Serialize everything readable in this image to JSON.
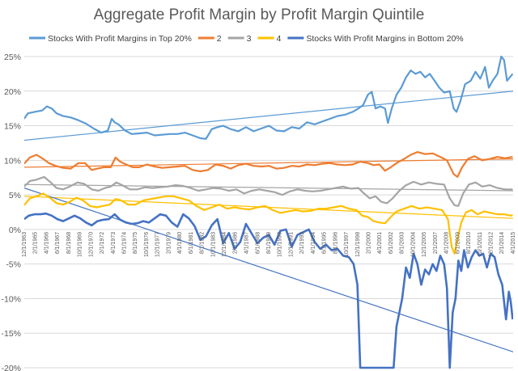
{
  "chart_data": {
    "type": "line",
    "title": "Aggregate Profit Margin by Profit Margin Quintile",
    "xlabel": "",
    "ylabel": "",
    "y_unit": "%",
    "ylim": [
      -20,
      25
    ],
    "yticks": [
      -20,
      -15,
      -10,
      -5,
      0,
      5,
      10,
      15,
      20,
      25
    ],
    "ytick_labels": [
      "-20%",
      "-15%",
      "-10%",
      "-5%",
      "0%",
      "5%",
      "10%",
      "15%",
      "20%",
      "25%"
    ],
    "x_range": [
      1963.92,
      2015.25
    ],
    "x_ticks": [
      {
        "x": 1963.92,
        "label": "12/1/1963"
      },
      {
        "x": 1965.08,
        "label": "2/1/1965"
      },
      {
        "x": 1966.25,
        "label": "4/1/1966"
      },
      {
        "x": 1967.42,
        "label": "6/1/1967"
      },
      {
        "x": 1968.58,
        "label": "8/1/1968"
      },
      {
        "x": 1969.75,
        "label": "10/1/1969"
      },
      {
        "x": 1970.92,
        "label": "12/1/1970"
      },
      {
        "x": 1972.08,
        "label": "2/1/1972"
      },
      {
        "x": 1973.25,
        "label": "4/1/1973"
      },
      {
        "x": 1974.42,
        "label": "6/1/1974"
      },
      {
        "x": 1975.58,
        "label": "8/1/1975"
      },
      {
        "x": 1976.75,
        "label": "10/1/1976"
      },
      {
        "x": 1977.92,
        "label": "12/1/1977"
      },
      {
        "x": 1979.08,
        "label": "2/1/1979"
      },
      {
        "x": 1980.25,
        "label": "4/1/1980"
      },
      {
        "x": 1981.42,
        "label": "6/1/1981"
      },
      {
        "x": 1982.58,
        "label": "8/1/1982"
      },
      {
        "x": 1983.75,
        "label": "10/1/1983"
      },
      {
        "x": 1984.92,
        "label": "12/1/1984"
      },
      {
        "x": 1986.08,
        "label": "2/1/1986"
      },
      {
        "x": 1987.25,
        "label": "4/1/1987"
      },
      {
        "x": 1988.42,
        "label": "6/1/1988"
      },
      {
        "x": 1989.58,
        "label": "8/1/1989"
      },
      {
        "x": 1990.75,
        "label": "10/1/1990"
      },
      {
        "x": 1991.92,
        "label": "12/1/1991"
      },
      {
        "x": 1993.08,
        "label": "2/1/1993"
      },
      {
        "x": 1994.25,
        "label": "4/1/1994"
      },
      {
        "x": 1995.42,
        "label": "6/1/1995"
      },
      {
        "x": 1996.58,
        "label": "8/1/1996"
      },
      {
        "x": 1997.75,
        "label": "10/1/1997"
      },
      {
        "x": 1998.92,
        "label": "12/1/1998"
      },
      {
        "x": 2000.08,
        "label": "2/1/2000"
      },
      {
        "x": 2001.25,
        "label": "4/1/2001"
      },
      {
        "x": 2002.42,
        "label": "6/1/2002"
      },
      {
        "x": 2003.58,
        "label": "8/1/2003"
      },
      {
        "x": 2004.75,
        "label": "10/1/2004"
      },
      {
        "x": 2005.92,
        "label": "12/1/2005"
      },
      {
        "x": 2007.08,
        "label": "2/1/2007"
      },
      {
        "x": 2008.25,
        "label": "4/1/2008"
      },
      {
        "x": 2009.42,
        "label": "6/1/2009"
      },
      {
        "x": 2010.58,
        "label": "8/1/2010"
      },
      {
        "x": 2011.75,
        "label": "10/1/2011"
      },
      {
        "x": 2012.92,
        "label": "12/1/2012"
      },
      {
        "x": 2014.08,
        "label": "2/1/2014"
      },
      {
        "x": 2015.25,
        "label": "4/1/2015"
      }
    ],
    "grid": "horizontal",
    "legend_position": "top",
    "series": [
      {
        "name": "Stocks With Profit Margins in Top 20%",
        "color": "#5b9bd5",
        "width": 2.2,
        "x": [
          1963.9,
          1964.3,
          1965.0,
          1965.8,
          1966.3,
          1966.8,
          1967.3,
          1968.0,
          1968.8,
          1969.6,
          1970.4,
          1971.2,
          1972.0,
          1972.7,
          1973.1,
          1973.4,
          1973.8,
          1974.5,
          1975.2,
          1976.0,
          1976.8,
          1977.6,
          1978.4,
          1979.2,
          1980.0,
          1980.8,
          1981.6,
          1982.4,
          1983.0,
          1983.6,
          1984.2,
          1984.8,
          1985.6,
          1986.4,
          1987.2,
          1988.0,
          1988.8,
          1989.6,
          1990.4,
          1991.2,
          1992.0,
          1992.8,
          1993.6,
          1994.4,
          1995.2,
          1996.0,
          1996.8,
          1997.6,
          1998.4,
          1999.0,
          1999.5,
          2000.0,
          2000.4,
          2000.8,
          2001.3,
          2001.8,
          2002.1,
          2002.5,
          2003.0,
          2003.5,
          2004.0,
          2004.5,
          2005.0,
          2005.5,
          2006.0,
          2006.5,
          2007.0,
          2007.5,
          2008.0,
          2008.6,
          2009.0,
          2009.3,
          2009.7,
          2010.2,
          2010.8,
          2011.3,
          2011.8,
          2012.3,
          2012.7,
          2013.1,
          2013.6,
          2014.0,
          2014.3,
          2014.6,
          2014.9,
          2015.2
        ],
        "y": [
          16.0,
          16.8,
          17.0,
          17.2,
          17.8,
          17.5,
          16.8,
          16.4,
          16.2,
          15.8,
          15.3,
          14.6,
          14.0,
          14.3,
          16.0,
          15.5,
          15.2,
          14.3,
          13.8,
          13.9,
          14.0,
          13.6,
          13.7,
          13.8,
          13.8,
          14.0,
          13.6,
          13.2,
          13.1,
          14.5,
          14.8,
          15.0,
          14.5,
          14.2,
          14.8,
          14.2,
          14.6,
          15.0,
          14.3,
          14.2,
          14.8,
          14.6,
          15.5,
          15.2,
          15.6,
          16.0,
          16.4,
          16.6,
          17.0,
          17.5,
          18.0,
          19.5,
          19.9,
          17.5,
          17.8,
          17.5,
          15.4,
          17.5,
          19.5,
          20.5,
          22.0,
          23.0,
          22.5,
          22.8,
          22.0,
          22.5,
          21.5,
          20.5,
          19.8,
          20.0,
          17.5,
          17.0,
          18.5,
          21.0,
          21.5,
          22.8,
          21.8,
          23.5,
          20.5,
          21.5,
          22.5,
          25.0,
          24.5,
          21.5,
          22.0,
          22.5
        ]
      },
      {
        "name": "2",
        "color": "#ed7d31",
        "width": 2.2,
        "x": [
          1963.9,
          1964.5,
          1965.2,
          1965.9,
          1966.5,
          1967.2,
          1968.0,
          1968.8,
          1969.6,
          1970.3,
          1971.0,
          1971.6,
          1972.3,
          1973.0,
          1973.5,
          1974.0,
          1974.6,
          1975.3,
          1976.0,
          1976.8,
          1977.6,
          1978.4,
          1979.2,
          1980.0,
          1980.8,
          1981.6,
          1982.4,
          1983.2,
          1984.0,
          1984.8,
          1985.6,
          1986.4,
          1987.2,
          1988.0,
          1988.8,
          1989.6,
          1990.4,
          1991.2,
          1992.0,
          1992.8,
          1993.6,
          1994.4,
          1995.2,
          1996.0,
          1996.8,
          1997.6,
          1998.4,
          1999.2,
          2000.0,
          2000.6,
          2001.2,
          2001.8,
          2002.4,
          2003.0,
          2003.8,
          2004.5,
          2005.2,
          2006.0,
          2006.8,
          2007.6,
          2008.3,
          2009.0,
          2009.4,
          2009.9,
          2010.5,
          2011.2,
          2012.0,
          2012.8,
          2013.6,
          2014.4,
          2015.2
        ],
        "y": [
          9.5,
          10.4,
          10.8,
          10.2,
          9.6,
          9.2,
          8.9,
          8.8,
          9.6,
          9.6,
          8.6,
          8.8,
          9.0,
          9.0,
          10.4,
          9.8,
          9.4,
          9.0,
          9.0,
          9.4,
          9.1,
          8.9,
          9.0,
          9.1,
          9.2,
          8.6,
          8.4,
          8.6,
          9.4,
          9.2,
          8.8,
          9.3,
          9.5,
          9.2,
          9.1,
          9.2,
          8.8,
          8.9,
          9.2,
          9.1,
          9.4,
          9.3,
          9.5,
          9.6,
          9.4,
          9.3,
          9.4,
          9.8,
          9.6,
          9.3,
          9.4,
          8.5,
          9.0,
          9.6,
          10.2,
          10.8,
          11.2,
          10.9,
          11.0,
          10.5,
          10.0,
          8.0,
          7.6,
          9.0,
          10.2,
          10.6,
          10.0,
          10.2,
          10.5,
          10.3,
          10.5
        ]
      },
      {
        "name": "3",
        "color": "#a5a5a5",
        "width": 2.2,
        "x": [
          1963.9,
          1964.5,
          1965.2,
          1966.0,
          1966.7,
          1967.3,
          1968.0,
          1968.7,
          1969.5,
          1970.2,
          1971.0,
          1971.7,
          1972.4,
          1973.0,
          1973.6,
          1974.2,
          1975.0,
          1975.8,
          1976.6,
          1977.4,
          1978.2,
          1979.0,
          1979.8,
          1980.6,
          1981.4,
          1982.2,
          1983.0,
          1983.8,
          1984.6,
          1985.4,
          1986.2,
          1987.0,
          1987.8,
          1988.6,
          1989.4,
          1990.2,
          1991.0,
          1991.8,
          1992.6,
          1993.4,
          1994.2,
          1995.0,
          1995.8,
          1996.6,
          1997.4,
          1998.2,
          1999.0,
          1999.6,
          2000.2,
          2000.8,
          2001.4,
          2002.0,
          2002.6,
          2003.3,
          2004.0,
          2004.8,
          2005.6,
          2006.4,
          2007.2,
          2008.0,
          2008.6,
          2009.1,
          2009.5,
          2010.0,
          2010.6,
          2011.3,
          2012.0,
          2012.8,
          2013.6,
          2014.4,
          2015.2
        ],
        "y": [
          6.2,
          7.0,
          7.2,
          7.6,
          6.8,
          6.0,
          5.8,
          6.2,
          6.8,
          6.6,
          5.8,
          5.6,
          6.0,
          6.2,
          6.8,
          6.4,
          5.8,
          5.8,
          6.1,
          6.0,
          6.1,
          6.2,
          6.4,
          6.3,
          6.0,
          5.6,
          5.8,
          6.0,
          5.9,
          5.6,
          5.8,
          5.2,
          5.6,
          5.8,
          5.6,
          5.4,
          5.0,
          5.5,
          5.8,
          5.6,
          5.5,
          5.6,
          5.8,
          6.0,
          6.2,
          5.9,
          6.0,
          5.2,
          4.5,
          4.8,
          4.0,
          3.8,
          4.5,
          5.6,
          6.4,
          6.9,
          6.5,
          6.8,
          6.6,
          6.5,
          4.5,
          3.5,
          3.4,
          5.2,
          6.5,
          6.8,
          6.2,
          6.4,
          6.0,
          5.8,
          5.8
        ]
      },
      {
        "name": "4",
        "color": "#ffc000",
        "width": 2.2,
        "x": [
          1963.9,
          1964.5,
          1965.2,
          1965.9,
          1966.6,
          1967.3,
          1968.0,
          1968.7,
          1969.4,
          1970.1,
          1970.8,
          1971.5,
          1972.2,
          1972.9,
          1973.5,
          1974.1,
          1974.8,
          1975.6,
          1976.4,
          1977.2,
          1978.0,
          1978.8,
          1979.6,
          1980.4,
          1981.2,
          1982.0,
          1982.8,
          1983.6,
          1984.4,
          1985.2,
          1986.0,
          1986.8,
          1987.6,
          1988.4,
          1989.2,
          1990.0,
          1990.8,
          1991.6,
          1992.4,
          1993.2,
          1994.0,
          1994.8,
          1995.6,
          1996.4,
          1997.2,
          1998.0,
          1998.8,
          1999.4,
          2000.0,
          2000.6,
          2001.2,
          2001.8,
          2002.4,
          2003.0,
          2003.8,
          2004.6,
          2005.4,
          2006.2,
          2007.0,
          2007.8,
          2008.4,
          2008.8,
          2009.1,
          2009.4,
          2009.8,
          2010.3,
          2010.9,
          2011.5,
          2012.2,
          2012.9,
          2013.6,
          2014.3,
          2015.0,
          2015.2
        ],
        "y": [
          3.5,
          4.5,
          4.8,
          5.2,
          4.6,
          3.8,
          3.6,
          4.0,
          4.6,
          4.2,
          3.4,
          3.2,
          3.4,
          3.6,
          4.4,
          4.2,
          3.6,
          3.6,
          4.2,
          4.4,
          4.6,
          4.8,
          4.8,
          4.5,
          4.2,
          3.4,
          2.8,
          3.2,
          3.6,
          3.0,
          3.2,
          3.0,
          2.9,
          3.2,
          3.4,
          2.8,
          2.4,
          2.6,
          2.8,
          2.6,
          2.7,
          3.0,
          3.0,
          3.2,
          3.4,
          3.0,
          2.8,
          2.0,
          1.8,
          1.2,
          1.0,
          0.9,
          1.8,
          2.6,
          3.0,
          3.4,
          3.0,
          3.2,
          3.0,
          2.8,
          1.5,
          -2.5,
          -3.5,
          -1.5,
          1.0,
          2.5,
          2.8,
          2.2,
          2.6,
          2.4,
          2.2,
          2.2,
          2.0,
          2.1
        ]
      },
      {
        "name": "Stocks With Profit Margins in Bottom 20%",
        "color": "#4472c4",
        "width": 2.6,
        "x": [
          1963.9,
          1964.4,
          1965.0,
          1965.6,
          1966.2,
          1966.8,
          1967.4,
          1968.0,
          1968.6,
          1969.2,
          1969.8,
          1970.4,
          1971.0,
          1971.6,
          1972.2,
          1972.8,
          1973.4,
          1974.0,
          1974.6,
          1975.2,
          1975.8,
          1976.4,
          1977.0,
          1977.6,
          1978.2,
          1978.8,
          1979.4,
          1980.0,
          1980.6,
          1981.2,
          1981.8,
          1982.4,
          1983.0,
          1983.6,
          1984.2,
          1984.8,
          1985.4,
          1986.0,
          1986.6,
          1987.2,
          1987.8,
          1988.4,
          1989.0,
          1989.6,
          1990.2,
          1990.8,
          1991.4,
          1992.0,
          1992.6,
          1993.2,
          1993.8,
          1994.4,
          1995.0,
          1995.6,
          1996.2,
          1996.8,
          1997.4,
          1998.0,
          1998.5,
          1998.9,
          1999.2,
          1999.6,
          2000.0,
          2000.3,
          2000.6,
          2000.9,
          2001.2,
          2001.5,
          2001.8,
          2002.1,
          2002.4,
          2002.7,
          2003.0,
          2003.3,
          2003.6,
          2004.0,
          2004.4,
          2004.8,
          2005.2,
          2005.6,
          2006.0,
          2006.4,
          2006.8,
          2007.2,
          2007.6,
          2008.0,
          2008.3,
          2008.6,
          2008.9,
          2009.2,
          2009.5,
          2009.8,
          2010.1,
          2010.5,
          2010.9,
          2011.3,
          2011.7,
          2012.1,
          2012.5,
          2012.9,
          2013.3,
          2013.7,
          2014.1,
          2014.5,
          2014.8,
          2015.0,
          2015.2
        ],
        "y": [
          1.5,
          2.0,
          2.2,
          2.2,
          2.3,
          2.0,
          1.5,
          1.2,
          1.6,
          2.0,
          1.6,
          1.0,
          0.6,
          1.2,
          1.4,
          1.5,
          2.2,
          1.4,
          1.0,
          0.8,
          0.9,
          1.2,
          1.0,
          1.6,
          2.2,
          2.0,
          1.0,
          0.4,
          2.2,
          1.6,
          0.5,
          -1.5,
          -1.0,
          0.6,
          1.5,
          -2.0,
          -0.5,
          -2.8,
          -1.8,
          0.8,
          -0.6,
          -2.0,
          -1.2,
          -0.8,
          -2.2,
          -0.2,
          0.0,
          -2.5,
          -0.8,
          -0.4,
          0.0,
          -1.8,
          -2.8,
          -2.2,
          -3.0,
          -2.8,
          -3.8,
          -4.0,
          -5.0,
          -8.0,
          -20.0,
          -20.0,
          -20.0,
          -20.0,
          -20.0,
          -20.0,
          -20.0,
          -20.0,
          -20.0,
          -20.0,
          -20.0,
          -20.0,
          -14.0,
          -12.0,
          -10.0,
          -5.5,
          -7.0,
          -3.5,
          -5.0,
          -8.0,
          -5.8,
          -6.5,
          -5.0,
          -6.0,
          -3.8,
          -5.0,
          -8.5,
          -20.0,
          -12.0,
          -10.0,
          -4.5,
          -6.0,
          -3.0,
          -5.5,
          -4.0,
          -3.0,
          -3.8,
          -3.5,
          -5.5,
          -3.5,
          -4.0,
          -6.5,
          -8.0,
          -13.0,
          -9.0,
          -10.5,
          -13.0
        ]
      }
    ],
    "trendlines": [
      {
        "series": "Stocks With Profit Margins in Top 20%",
        "color": "#5b9bd5",
        "x": [
          1963.92,
          2015.25
        ],
        "y": [
          12.9,
          20.0
        ]
      },
      {
        "series": "2",
        "color": "#ed7d31",
        "x": [
          1963.92,
          2015.25
        ],
        "y": [
          9.0,
          10.2
        ]
      },
      {
        "series": "3",
        "color": "#a5a5a5",
        "x": [
          1963.92,
          2015.25
        ],
        "y": [
          6.5,
          5.6
        ]
      },
      {
        "series": "4",
        "color": "#ffc000",
        "x": [
          1963.92,
          2015.25
        ],
        "y": [
          4.8,
          1.6
        ]
      },
      {
        "series": "Stocks With Profit Margins in Bottom 20%",
        "color": "#4472c4",
        "x": [
          1963.92,
          2015.25
        ],
        "y": [
          6.0,
          -17.7
        ]
      }
    ]
  }
}
